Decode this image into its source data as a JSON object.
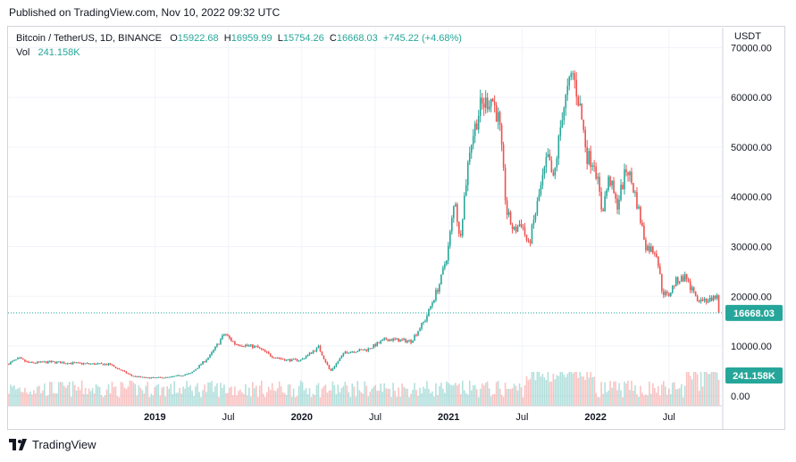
{
  "header": {
    "published": "Published on TradingView.com, Nov 10, 2022 09:32 UTC"
  },
  "legend": {
    "symbol": "Bitcoin / TetherUS, 1D, BINANCE",
    "open_label": "O",
    "open": "15922.68",
    "high_label": "H",
    "high": "16959.99",
    "low_label": "L",
    "low": "15754.26",
    "close_label": "C",
    "close": "16668.03",
    "change": "+745.22 (+4.68%)",
    "vol_label": "Vol",
    "vol": "241.158K"
  },
  "footer": {
    "brand": "TradingView"
  },
  "colors": {
    "up": "#26a69a",
    "down": "#ef5350",
    "grid": "#f0f3fa",
    "price_badge": "#26a69a"
  },
  "chart_data": {
    "type": "candlestick",
    "title": "Bitcoin / TetherUS, 1D, BINANCE",
    "currency_label": "USDT",
    "y_ticks": [
      0,
      10000,
      20000,
      30000,
      40000,
      50000,
      60000,
      70000
    ],
    "y_tick_labels": [
      "0.00",
      "10000.00",
      "20000.00",
      "30000.00",
      "40000.00",
      "50000.00",
      "60000.00",
      "70000.00"
    ],
    "x_ticks": [
      {
        "t": 2019.0,
        "label": "2019",
        "bold": true
      },
      {
        "t": 2019.5,
        "label": "Jul",
        "bold": false
      },
      {
        "t": 2020.0,
        "label": "2020",
        "bold": true
      },
      {
        "t": 2020.5,
        "label": "Jul",
        "bold": false
      },
      {
        "t": 2021.0,
        "label": "2021",
        "bold": true
      },
      {
        "t": 2021.5,
        "label": "Jul",
        "bold": false
      },
      {
        "t": 2022.0,
        "label": "2022",
        "bold": true
      },
      {
        "t": 2022.5,
        "label": "Jul",
        "bold": false
      }
    ],
    "x_range": [
      2018.0,
      2022.86
    ],
    "y_range": [
      -2000,
      74000
    ],
    "price_key_points": [
      [
        2018.0,
        6400
      ],
      [
        2018.08,
        7500
      ],
      [
        2018.15,
        6600
      ],
      [
        2018.3,
        6800
      ],
      [
        2018.5,
        6500
      ],
      [
        2018.7,
        6300
      ],
      [
        2018.85,
        4000
      ],
      [
        2018.95,
        3600
      ],
      [
        2019.1,
        3700
      ],
      [
        2019.25,
        4500
      ],
      [
        2019.38,
        8000
      ],
      [
        2019.48,
        12500
      ],
      [
        2019.55,
        10500
      ],
      [
        2019.7,
        9800
      ],
      [
        2019.8,
        8000
      ],
      [
        2019.9,
        7200
      ],
      [
        2020.0,
        7200
      ],
      [
        2020.12,
        9800
      ],
      [
        2020.2,
        4900
      ],
      [
        2020.3,
        8800
      ],
      [
        2020.45,
        9300
      ],
      [
        2020.58,
        11400
      ],
      [
        2020.75,
        11000
      ],
      [
        2020.85,
        15500
      ],
      [
        2020.95,
        23000
      ],
      [
        2021.0,
        29000
      ],
      [
        2021.05,
        40000
      ],
      [
        2021.08,
        31000
      ],
      [
        2021.15,
        50000
      ],
      [
        2021.22,
        58000
      ],
      [
        2021.3,
        60000
      ],
      [
        2021.35,
        55000
      ],
      [
        2021.4,
        37000
      ],
      [
        2021.45,
        33000
      ],
      [
        2021.5,
        35000
      ],
      [
        2021.55,
        30000
      ],
      [
        2021.62,
        40000
      ],
      [
        2021.68,
        48000
      ],
      [
        2021.72,
        43000
      ],
      [
        2021.78,
        57000
      ],
      [
        2021.85,
        65000
      ],
      [
        2021.9,
        58000
      ],
      [
        2021.95,
        48000
      ],
      [
        2022.0,
        47000
      ],
      [
        2022.05,
        37000
      ],
      [
        2022.1,
        44000
      ],
      [
        2022.15,
        38000
      ],
      [
        2022.22,
        46000
      ],
      [
        2022.28,
        40000
      ],
      [
        2022.35,
        30000
      ],
      [
        2022.42,
        29000
      ],
      [
        2022.46,
        21000
      ],
      [
        2022.5,
        20000
      ],
      [
        2022.55,
        23000
      ],
      [
        2022.62,
        24000
      ],
      [
        2022.68,
        20000
      ],
      [
        2022.72,
        19500
      ],
      [
        2022.8,
        19000
      ],
      [
        2022.83,
        20500
      ],
      [
        2022.845,
        16668
      ]
    ],
    "volume_scale": [
      0,
      50000
    ],
    "last_close": 16668.03,
    "last_close_label": "16668.03",
    "last_volume_label": "241.158K"
  }
}
